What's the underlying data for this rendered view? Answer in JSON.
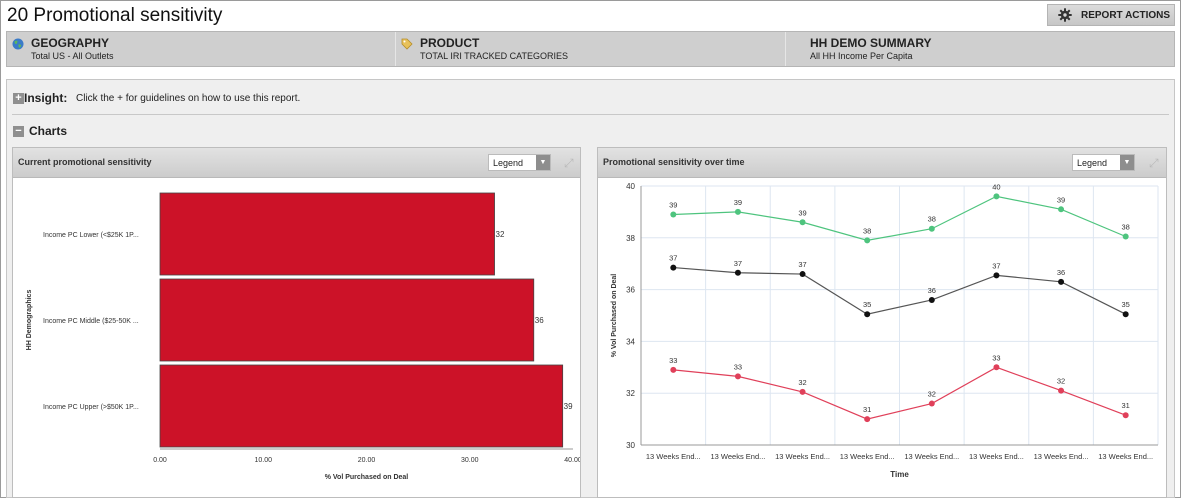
{
  "page": {
    "title": "20 Promotional sensitivity",
    "report_actions_label": "REPORT ACTIONS"
  },
  "filters": [
    {
      "heading": "GEOGRAPHY",
      "value": "Total US - All Outlets",
      "icon": "globe-icon"
    },
    {
      "heading": "PRODUCT",
      "value": "TOTAL IRI TRACKED CATEGORIES",
      "icon": "tag-icon"
    },
    {
      "heading": "HH DEMO SUMMARY",
      "value": "All HH Income Per Capita",
      "icon": ""
    }
  ],
  "insight": {
    "heading": "Insight:",
    "text": "Click the + for guidelines on how to use this report."
  },
  "charts_section": {
    "heading": "Charts"
  },
  "left_panel": {
    "title": "Current promotional sensitivity",
    "legend_label": "Legend"
  },
  "right_panel": {
    "title": "Promotional sensitivity over time",
    "legend_label": "Legend"
  },
  "chart_data": [
    {
      "type": "bar",
      "orientation": "horizontal",
      "categories": [
        "Income PC Lower (<$25K 1P...",
        "Income PC Middle ($25-50K ...",
        "Income PC Upper (>$50K 1P..."
      ],
      "values": [
        32.4,
        36.2,
        39.0
      ],
      "value_labels": [
        "32",
        "36",
        "39"
      ],
      "xlabel": "% Vol Purchased on Deal",
      "ylabel": "HH Demographics",
      "xlim": [
        0,
        40
      ],
      "xticks": [
        "0.00",
        "10.00",
        "20.00",
        "30.00",
        "40.00"
      ],
      "bar_color": "#cc1228",
      "grid": false
    },
    {
      "type": "line",
      "x": [
        "13 Weeks End...",
        "13 Weeks End...",
        "13 Weeks End...",
        "13 Weeks End...",
        "13 Weeks End...",
        "13 Weeks End...",
        "13 Weeks End...",
        "13 Weeks End..."
      ],
      "xlabel": "Time",
      "ylabel": "% Vol Purchased on Deal",
      "ylim": [
        30,
        40
      ],
      "yticks": [
        "30",
        "32",
        "34",
        "36",
        "38",
        "40"
      ],
      "grid": true,
      "series": [
        {
          "color": "#4ec47e",
          "values": [
            38.9,
            39.0,
            38.6,
            37.9,
            38.35,
            39.6,
            39.1,
            38.05
          ],
          "labels": [
            "39",
            "39",
            "39",
            "38",
            "38",
            "40",
            "39",
            "38"
          ]
        },
        {
          "color": "#111111",
          "values": [
            36.85,
            36.65,
            36.6,
            35.05,
            35.6,
            36.55,
            36.3,
            35.05
          ],
          "labels": [
            "37",
            "37",
            "37",
            "35",
            "36",
            "37",
            "36",
            "35"
          ]
        },
        {
          "color": "#e0405a",
          "values": [
            32.9,
            32.65,
            32.05,
            31.0,
            31.6,
            33.0,
            32.1,
            31.15
          ],
          "labels": [
            "33",
            "33",
            "32",
            "31",
            "32",
            "33",
            "32",
            "31"
          ]
        }
      ]
    }
  ]
}
